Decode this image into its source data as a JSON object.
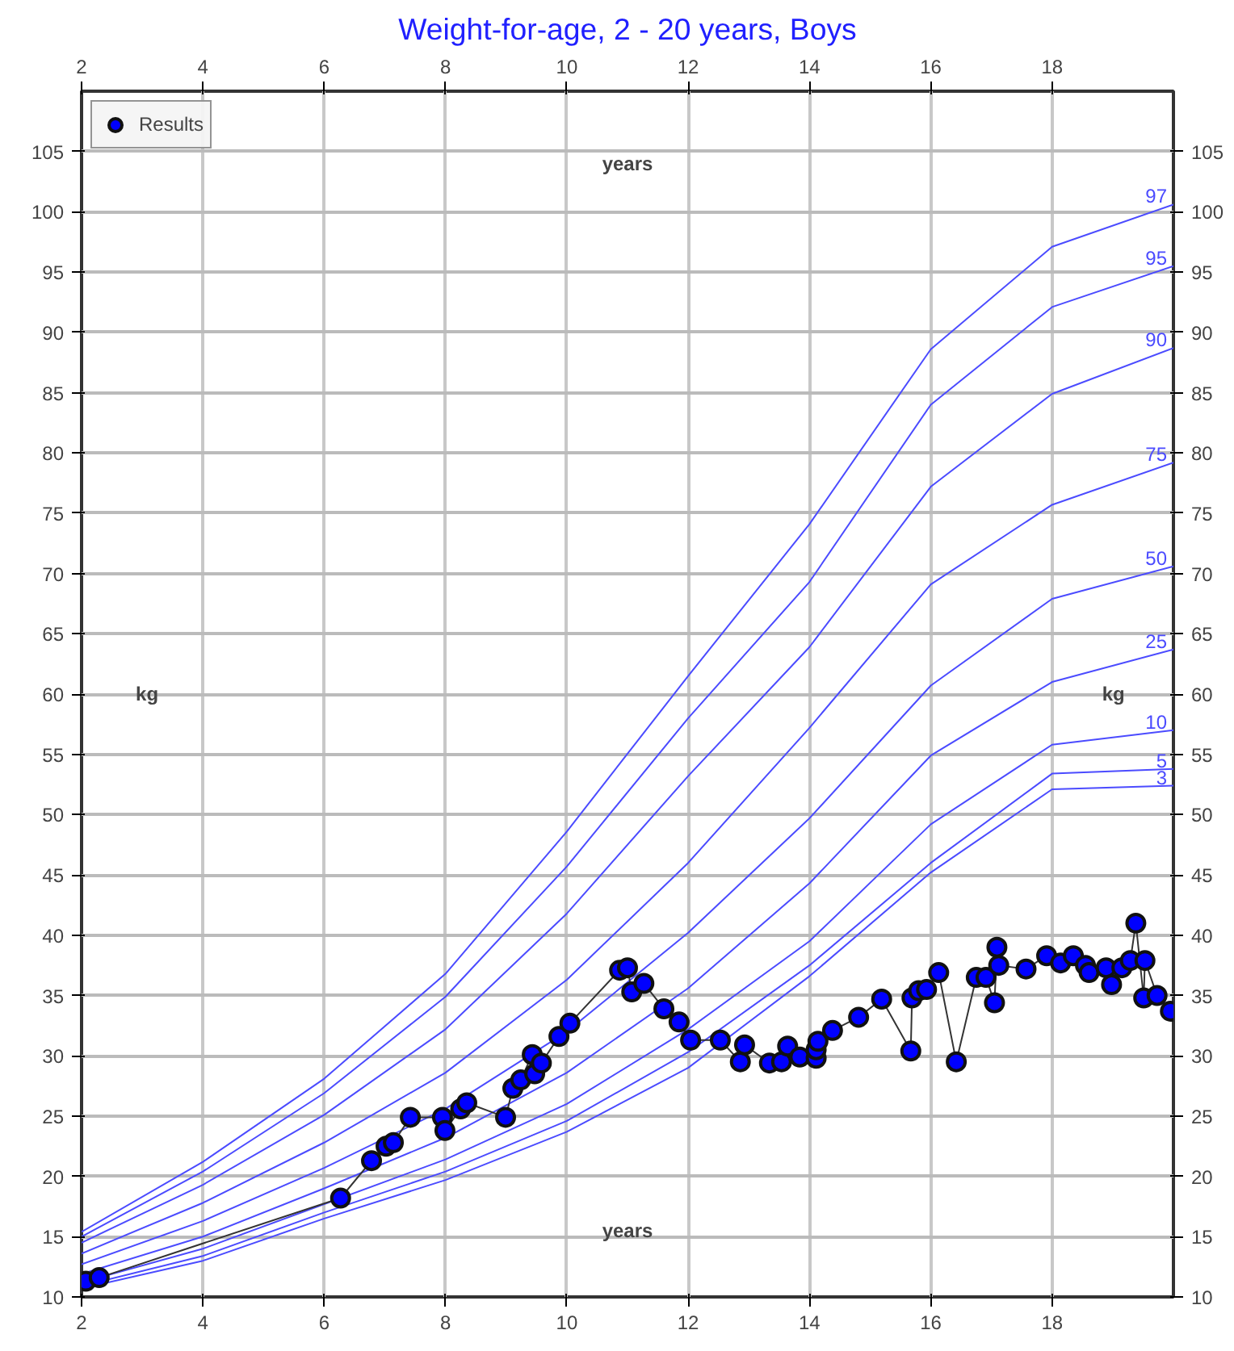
{
  "chart_data": {
    "type": "line",
    "title": "Weight-for-age, 2 - 20 years, Boys",
    "xlabel": "years",
    "x2label": "years",
    "ylabel": "kg",
    "y2label": "kg",
    "xlim": [
      2,
      20
    ],
    "xticks": [
      2,
      4,
      6,
      8,
      10,
      12,
      14,
      16,
      18
    ],
    "x2lim": [
      2,
      20
    ],
    "x2ticks": [
      2,
      4,
      6,
      8,
      10,
      12,
      14,
      16,
      18
    ],
    "ylim": [
      10,
      110
    ],
    "yticks": [
      10,
      15,
      20,
      25,
      30,
      35,
      40,
      45,
      50,
      55,
      60,
      65,
      70,
      75,
      80,
      85,
      90,
      95,
      100,
      105
    ],
    "y2lim": [
      10,
      110
    ],
    "y2ticks": [
      10,
      15,
      20,
      25,
      30,
      35,
      40,
      45,
      50,
      55,
      60,
      65,
      70,
      75,
      80,
      85,
      90,
      95,
      100,
      105
    ],
    "grid": true,
    "legend": "top left",
    "series": [
      {
        "name": "97",
        "color": "#4b4bff",
        "marker": "none",
        "x": [
          2,
          4,
          6,
          8,
          10,
          12,
          14,
          16,
          18,
          20
        ],
        "values": [
          15.4,
          21.2,
          28.1,
          36.8,
          48.6,
          61.5,
          74.1,
          88.6,
          97.1,
          100.6
        ]
      },
      {
        "name": "95",
        "color": "#4b4bff",
        "marker": "none",
        "x": [
          2,
          4,
          6,
          8,
          10,
          12,
          14,
          16,
          18,
          20
        ],
        "values": [
          15.0,
          20.4,
          26.9,
          34.9,
          45.7,
          58.0,
          69.3,
          84.0,
          92.1,
          95.5
        ]
      },
      {
        "name": "90",
        "color": "#4b4bff",
        "marker": "none",
        "x": [
          2,
          4,
          6,
          8,
          10,
          12,
          14,
          16,
          18,
          20
        ],
        "values": [
          14.5,
          19.3,
          25.1,
          32.2,
          41.8,
          53.2,
          63.9,
          77.2,
          84.9,
          88.7
        ]
      },
      {
        "name": "75",
        "color": "#4b4bff",
        "marker": "none",
        "x": [
          2,
          4,
          6,
          8,
          10,
          12,
          14,
          16,
          18,
          20
        ],
        "values": [
          13.6,
          17.8,
          22.8,
          28.6,
          36.3,
          46.0,
          57.2,
          69.1,
          75.7,
          79.2
        ]
      },
      {
        "name": "50",
        "color": "#4b4bff",
        "marker": "none",
        "x": [
          2,
          4,
          6,
          8,
          10,
          12,
          14,
          16,
          18,
          20
        ],
        "values": [
          12.7,
          16.3,
          20.7,
          25.6,
          32.0,
          40.2,
          49.7,
          60.7,
          67.9,
          70.6
        ]
      },
      {
        "name": "25",
        "color": "#4b4bff",
        "marker": "none",
        "x": [
          2,
          4,
          6,
          8,
          10,
          12,
          14,
          16,
          18,
          20
        ],
        "values": [
          11.9,
          15.0,
          19.0,
          23.2,
          28.6,
          35.6,
          44.3,
          54.9,
          61.0,
          63.7
        ]
      },
      {
        "name": "10",
        "color": "#4b4bff",
        "marker": "none",
        "x": [
          2,
          4,
          6,
          8,
          10,
          12,
          14,
          16,
          18,
          20
        ],
        "values": [
          11.2,
          14.0,
          17.7,
          21.4,
          26.0,
          32.2,
          39.5,
          49.2,
          55.8,
          57.0
        ]
      },
      {
        "name": "5",
        "color": "#4b4bff",
        "marker": "none",
        "x": [
          2,
          4,
          6,
          8,
          10,
          12,
          14,
          16,
          18,
          20
        ],
        "values": [
          10.9,
          13.4,
          17.0,
          20.4,
          24.6,
          30.3,
          37.5,
          46.0,
          53.4,
          53.8
        ]
      },
      {
        "name": "3",
        "color": "#4b4bff",
        "marker": "none",
        "x": [
          2,
          4,
          6,
          8,
          10,
          12,
          14,
          16,
          18,
          20
        ],
        "values": [
          10.7,
          13.0,
          16.5,
          19.7,
          23.7,
          29.0,
          36.6,
          45.2,
          52.1,
          52.4
        ]
      },
      {
        "name": "Results",
        "color": "#0000ff",
        "marker": "circle",
        "x": [
          2.07,
          2.29,
          6.27,
          6.78,
          7.02,
          7.14,
          7.42,
          7.95,
          7.99,
          8.25,
          8.35,
          8.99,
          9.11,
          9.24,
          9.43,
          9.47,
          9.58,
          9.87,
          10.05,
          10.87,
          11.0,
          11.07,
          11.27,
          11.6,
          11.85,
          12.04,
          12.53,
          12.86,
          12.93,
          13.34,
          13.54,
          13.64,
          13.84,
          14.11,
          14.11,
          14.14,
          14.38,
          14.81,
          15.19,
          15.67,
          15.69,
          15.8,
          15.93,
          16.13,
          16.42,
          16.75,
          16.91,
          17.05,
          17.09,
          17.12,
          17.57,
          17.91,
          18.14,
          18.35,
          18.55,
          18.61,
          18.89,
          18.98,
          19.15,
          19.29,
          19.38,
          19.51,
          19.53,
          19.73,
          19.95
        ],
        "values": [
          11.3,
          11.6,
          18.2,
          21.3,
          22.5,
          22.8,
          24.9,
          24.9,
          23.8,
          25.6,
          26.1,
          24.9,
          27.3,
          28.0,
          30.1,
          28.5,
          29.4,
          31.6,
          32.7,
          37.1,
          37.3,
          35.3,
          36.0,
          33.9,
          32.8,
          31.3,
          31.3,
          29.5,
          30.9,
          29.4,
          29.5,
          30.8,
          29.9,
          29.8,
          30.5,
          31.2,
          32.1,
          33.2,
          34.7,
          30.4,
          34.8,
          35.4,
          35.5,
          36.9,
          29.5,
          36.5,
          36.5,
          34.4,
          39.0,
          37.5,
          37.2,
          38.3,
          37.7,
          38.3,
          37.5,
          36.9,
          37.3,
          35.9,
          37.3,
          37.9,
          41.0,
          34.8,
          37.9,
          35.0,
          33.7
        ]
      }
    ]
  }
}
